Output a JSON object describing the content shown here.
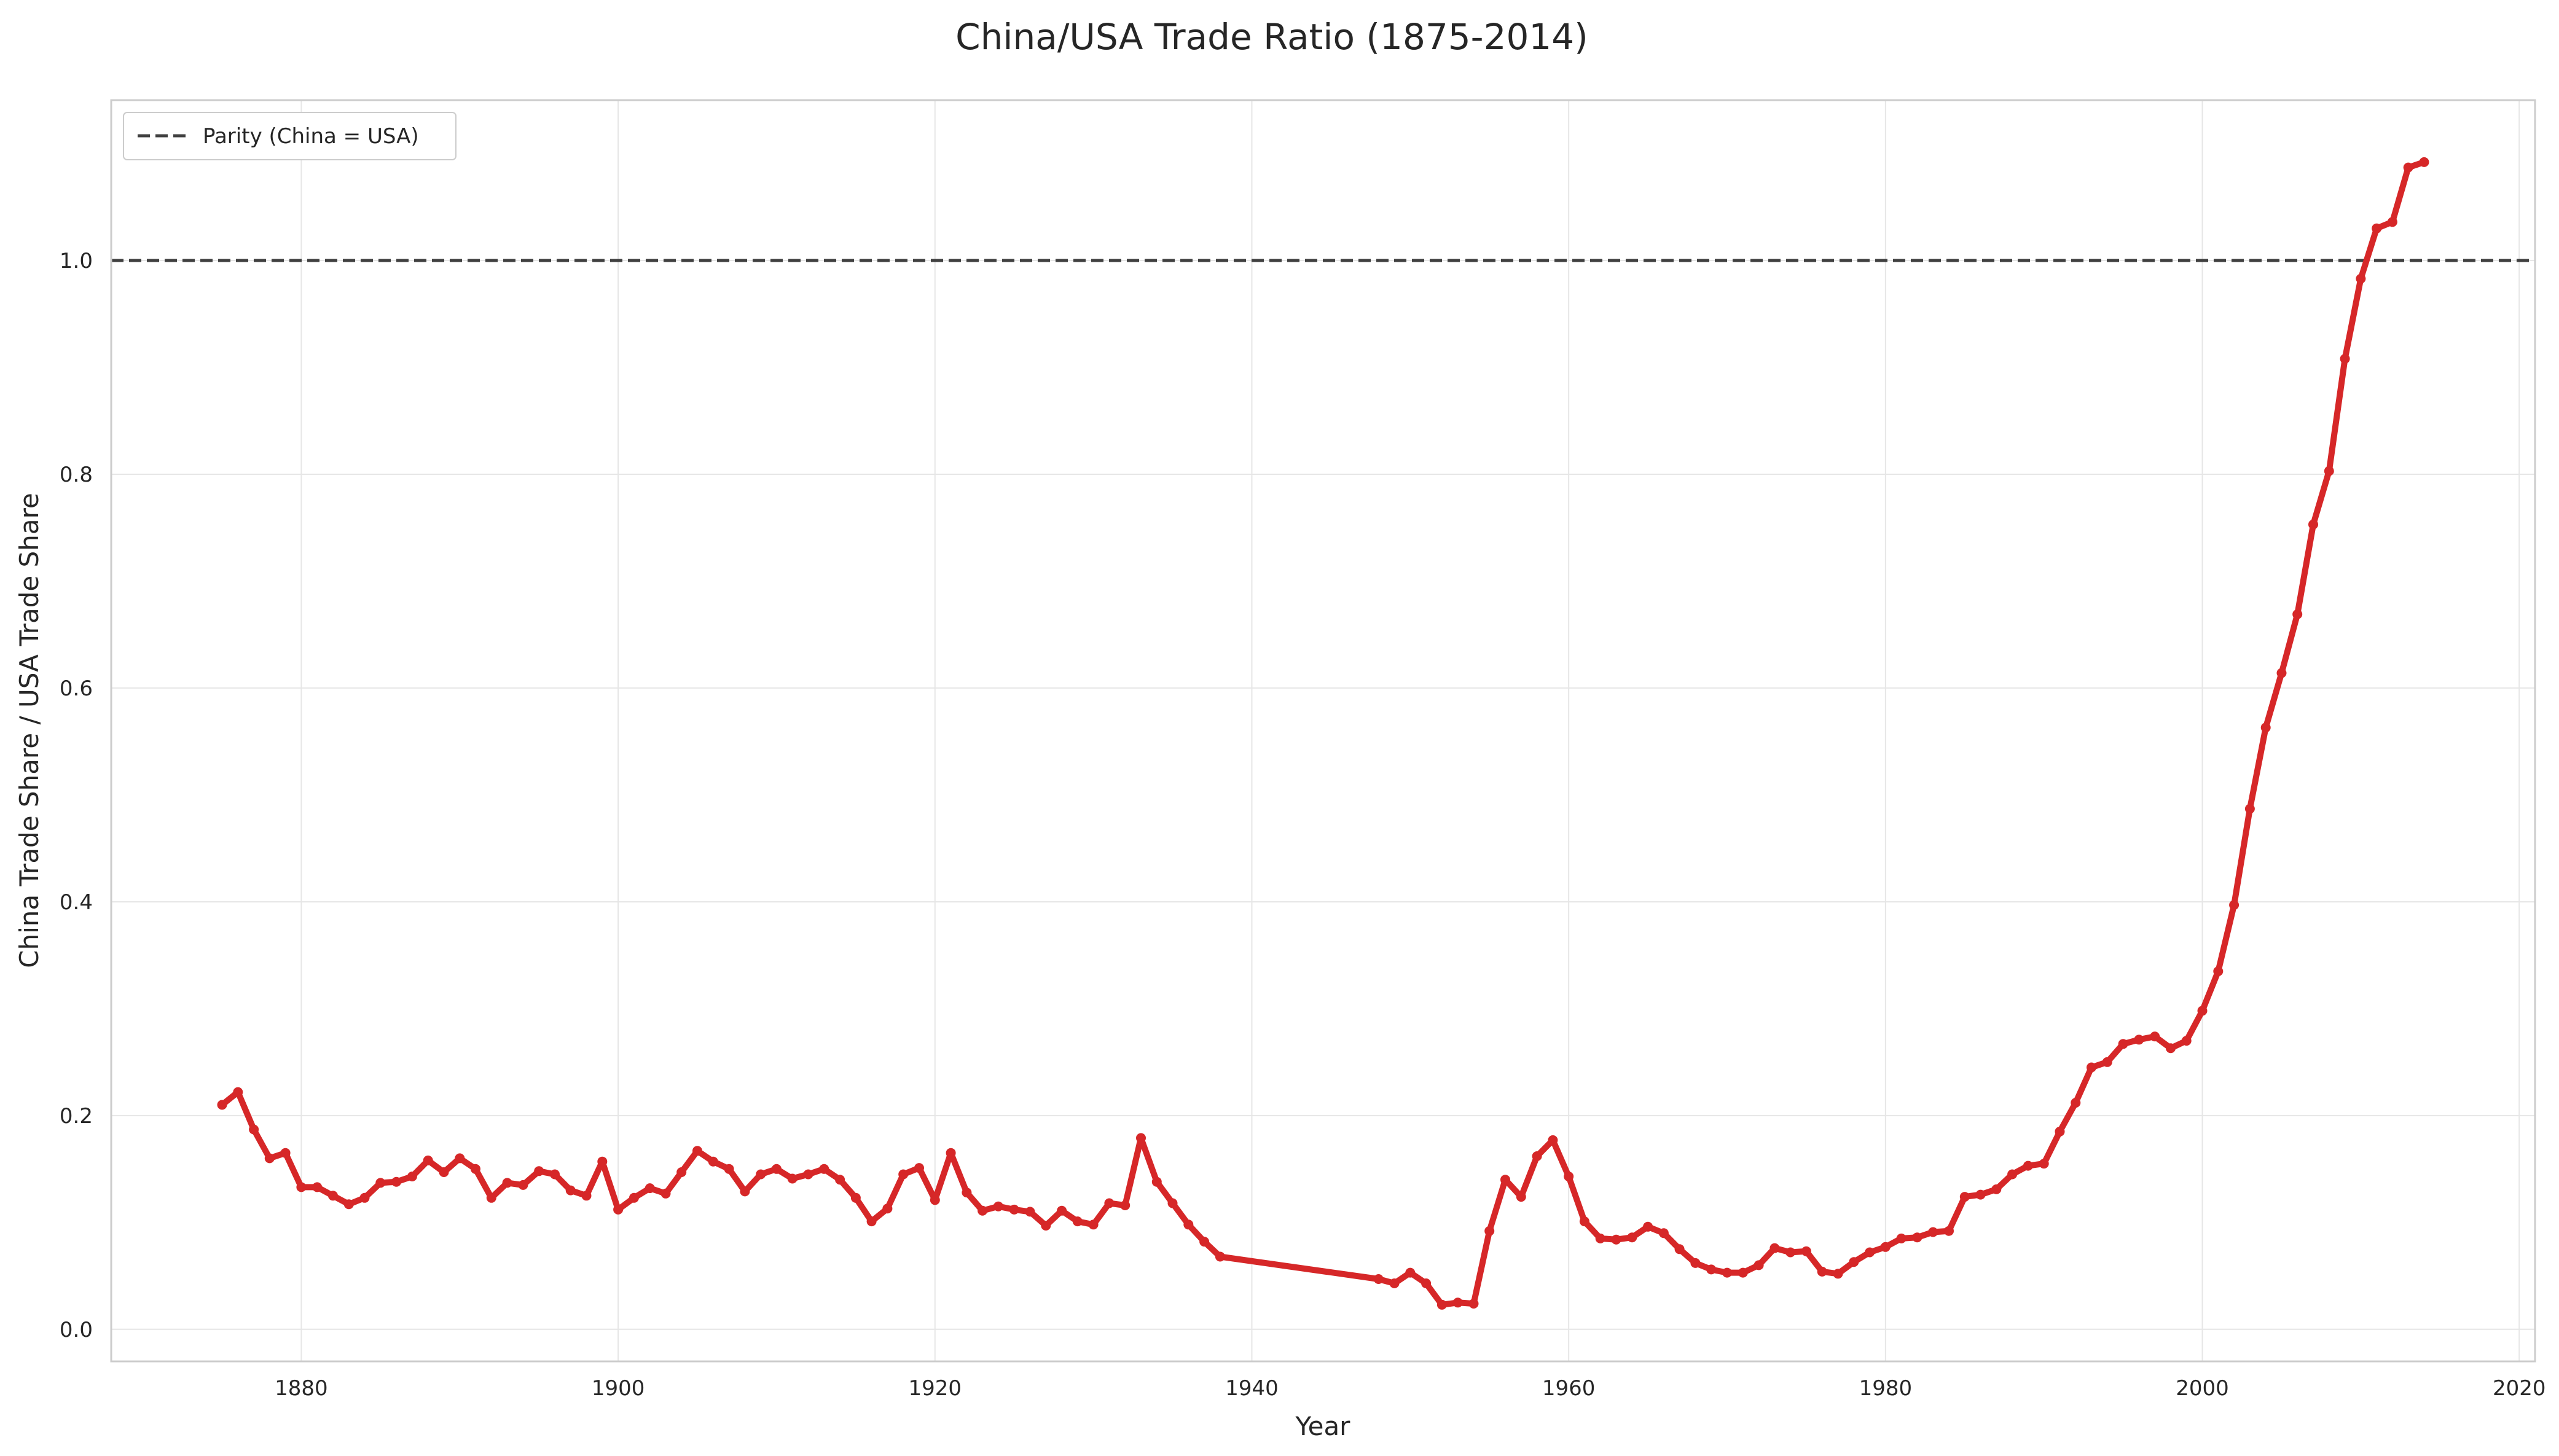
{
  "chart_data": {
    "type": "line",
    "title": "China/USA Trade Ratio (1875-2014)",
    "xlabel": "Year",
    "ylabel": "China Trade Share / USA Trade Share",
    "xlim": [
      1868,
      2021
    ],
    "ylim": [
      -0.03,
      1.15
    ],
    "x_ticks": [
      1880,
      1900,
      1920,
      1940,
      1960,
      1980,
      2000,
      2020
    ],
    "y_ticks": [
      0.0,
      0.2,
      0.4,
      0.6,
      0.8,
      1.0
    ],
    "x_tick_labels": [
      "1880",
      "1900",
      "1920",
      "1940",
      "1960",
      "1980",
      "2000",
      "2020"
    ],
    "y_tick_labels": [
      "0.0",
      "0.2",
      "0.4",
      "0.6",
      "0.8",
      "1.0"
    ],
    "grid": true,
    "legend": {
      "position": "top-left",
      "entries": [
        "Parity (China = USA)"
      ]
    },
    "reference_line": {
      "y": 1.0,
      "style": "dashed",
      "color": "#404040",
      "label": "Parity (China = USA)"
    },
    "series": [
      {
        "color": "#d62728",
        "x": [
          1875,
          1876,
          1877,
          1878,
          1879,
          1880,
          1881,
          1882,
          1883,
          1884,
          1885,
          1886,
          1887,
          1888,
          1889,
          1890,
          1891,
          1892,
          1893,
          1894,
          1895,
          1896,
          1897,
          1898,
          1899,
          1900,
          1901,
          1902,
          1903,
          1904,
          1905,
          1906,
          1907,
          1908,
          1909,
          1910,
          1911,
          1912,
          1913,
          1914,
          1915,
          1916,
          1917,
          1918,
          1919,
          1920,
          1921,
          1922,
          1923,
          1924,
          1925,
          1926,
          1927,
          1928,
          1929,
          1930,
          1931,
          1932,
          1933,
          1934,
          1935,
          1936,
          1937,
          1938,
          1948,
          1949,
          1950,
          1951,
          1952,
          1953,
          1954,
          1955,
          1956,
          1957,
          1958,
          1959,
          1960,
          1961,
          1962,
          1963,
          1964,
          1965,
          1966,
          1967,
          1968,
          1969,
          1970,
          1971,
          1972,
          1973,
          1974,
          1975,
          1976,
          1977,
          1978,
          1979,
          1980,
          1981,
          1982,
          1983,
          1984,
          1985,
          1986,
          1987,
          1988,
          1989,
          1990,
          1991,
          1992,
          1993,
          1994,
          1995,
          1996,
          1997,
          1998,
          1999,
          2000,
          2001,
          2002,
          2003,
          2004,
          2005,
          2006,
          2007,
          2008,
          2009,
          2010,
          2011,
          2012,
          2013,
          2014
        ],
        "y": [
          0.21,
          0.222,
          0.187,
          0.16,
          0.165,
          0.133,
          0.133,
          0.125,
          0.117,
          0.123,
          0.137,
          0.138,
          0.143,
          0.158,
          0.147,
          0.16,
          0.15,
          0.123,
          0.137,
          0.135,
          0.148,
          0.145,
          0.13,
          0.125,
          0.157,
          0.112,
          0.123,
          0.132,
          0.127,
          0.147,
          0.167,
          0.157,
          0.15,
          0.129,
          0.145,
          0.15,
          0.141,
          0.145,
          0.15,
          0.14,
          0.123,
          0.101,
          0.113,
          0.145,
          0.151,
          0.121,
          0.165,
          0.128,
          0.111,
          0.115,
          0.112,
          0.11,
          0.097,
          0.111,
          0.101,
          0.098,
          0.118,
          0.116,
          0.179,
          0.138,
          0.118,
          0.098,
          0.082,
          0.068,
          0.047,
          0.043,
          0.053,
          0.043,
          0.023,
          0.025,
          0.024,
          0.092,
          0.14,
          0.124,
          0.162,
          0.177,
          0.143,
          0.101,
          0.085,
          0.084,
          0.086,
          0.096,
          0.09,
          0.075,
          0.062,
          0.056,
          0.053,
          0.053,
          0.06,
          0.076,
          0.072,
          0.073,
          0.054,
          0.052,
          0.063,
          0.072,
          0.077,
          0.085,
          0.086,
          0.091,
          0.092,
          0.124,
          0.126,
          0.131,
          0.145,
          0.153,
          0.155,
          0.185,
          0.212,
          0.245,
          0.25,
          0.267,
          0.271,
          0.274,
          0.263,
          0.27,
          0.298,
          0.335,
          0.397,
          0.487,
          0.563,
          0.614,
          0.669,
          0.753,
          0.803,
          0.908,
          0.983,
          1.03,
          1.036,
          1.087,
          1.092
        ]
      }
    ]
  }
}
